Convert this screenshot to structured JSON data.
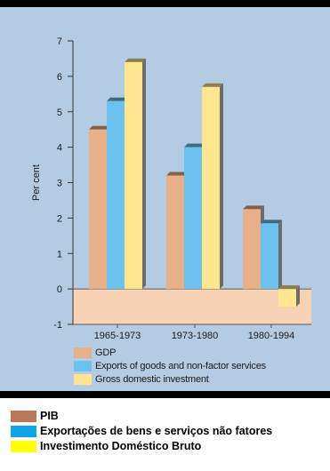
{
  "chart_data": {
    "type": "bar",
    "ylabel": "Per cent",
    "xlabel": "",
    "ylim": [
      -1,
      7
    ],
    "yticks": [
      -1,
      0,
      1,
      2,
      3,
      4,
      5,
      6,
      7
    ],
    "categories": [
      "1965-1973",
      "1973-1980",
      "1980-1994"
    ],
    "series": [
      {
        "name": "GDP",
        "values": [
          4.5,
          3.2,
          2.25
        ],
        "color": "#e8b088"
      },
      {
        "name": "Exports of goods and non-factor services",
        "values": [
          5.3,
          4.0,
          1.85
        ],
        "color": "#6cc2ee"
      },
      {
        "name": "Gross domestic investment",
        "values": [
          6.4,
          5.7,
          -0.5
        ],
        "color": "#fde68e"
      }
    ],
    "negative_band_color": "#f8d2b4",
    "bar_side_color": "#6c6c6c",
    "grid": false,
    "legend_position": "below-plot"
  },
  "caption": {
    "items": [
      {
        "label": "PIB",
        "color": "#b9785c"
      },
      {
        "label": "Exportações de bens e serviços não fatores",
        "color": "#0fa5e9"
      },
      {
        "label": "Investimento Doméstico Bruto",
        "color": "#ffff00"
      }
    ]
  }
}
